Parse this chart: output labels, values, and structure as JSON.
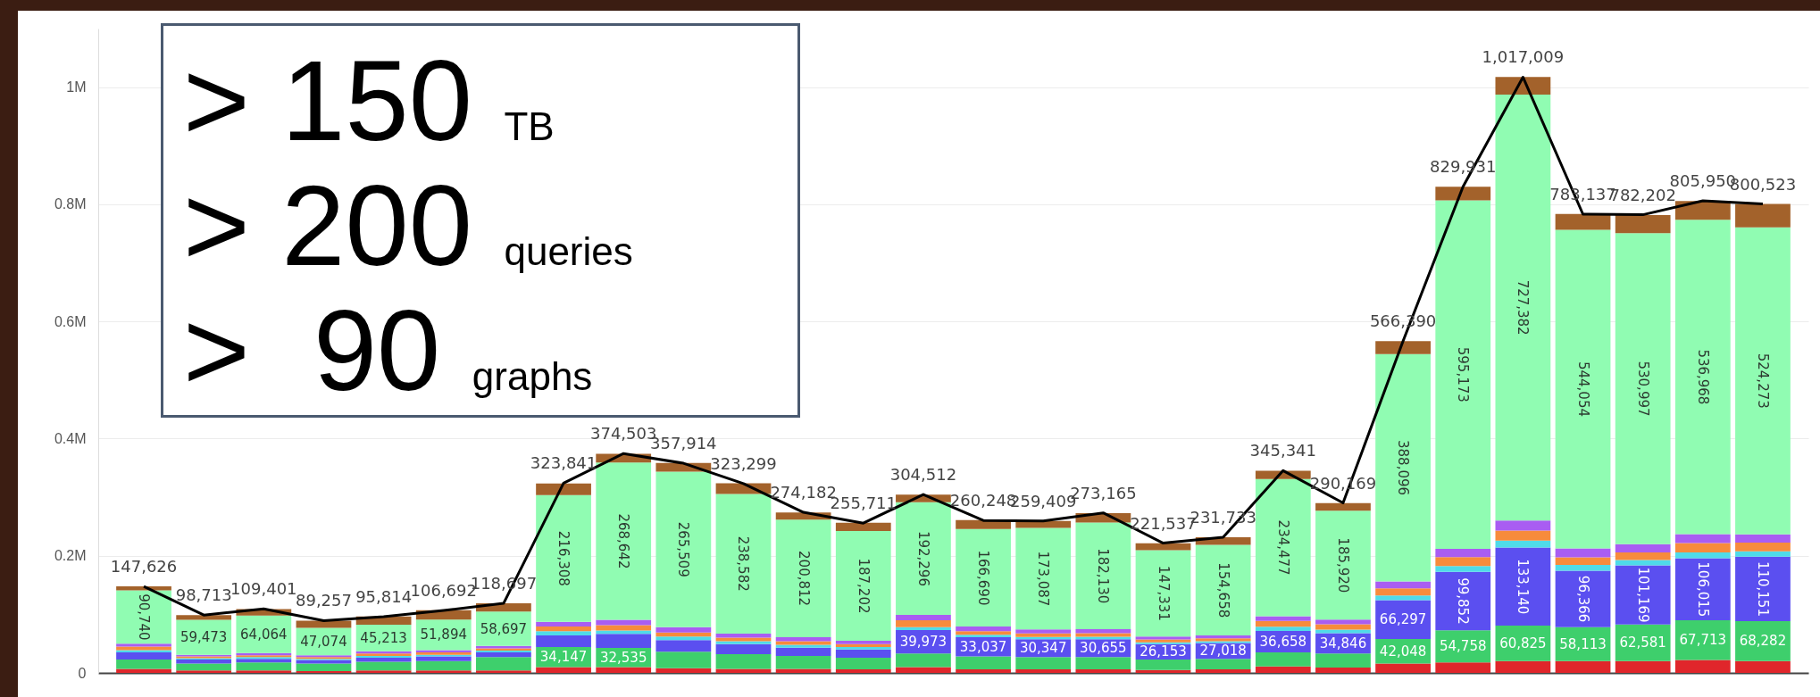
{
  "chart_data": {
    "type": "bar",
    "stacked": true,
    "categories": [
      null,
      null,
      null,
      null,
      null,
      null,
      null,
      null,
      null,
      null,
      null,
      null,
      null,
      null,
      null,
      null,
      null,
      null,
      null,
      null,
      null,
      null,
      null,
      null,
      null,
      null,
      null,
      null
    ],
    "ylim": [
      0,
      1100000
    ],
    "yticks": [
      0,
      {
        "value": 200000,
        "label": "0.2M"
      },
      {
        "value": 400000,
        "label": "0.4M"
      },
      {
        "value": 600000,
        "label": "0.6M"
      },
      {
        "value": 800000,
        "label": "0.8M"
      },
      {
        "value": 1000000,
        "label": "1M"
      }
    ],
    "grid": "y",
    "tick_labels": "y",
    "annotations": [
      "> 150 TB",
      "> 200 queries",
      ">  90 graphs"
    ],
    "series": [
      {
        "color": "#e0262b",
        "values": [
          7000,
          4000,
          4000,
          3000,
          4000,
          4000,
          4000,
          10000,
          10000,
          8000,
          7000,
          7000,
          6000,
          10000,
          6000,
          6000,
          6000,
          5000,
          6000,
          11000,
          9000,
          16000,
          18000,
          20000,
          20000,
          20000,
          22000,
          20000
        ]
      },
      {
        "color": "#3ecf6c",
        "values": [
          16000,
          12000,
          14000,
          13000,
          15000,
          16000,
          23000,
          34147,
          32535,
          28000,
          25000,
          22000,
          20000,
          23000,
          22000,
          21000,
          21000,
          18000,
          18000,
          24000,
          24000,
          42048,
          54758,
          60825,
          58113,
          62581,
          67713,
          68282
        ],
        "value_labels": [
          null,
          null,
          null,
          null,
          null,
          null,
          null,
          "34,147",
          "32,535",
          null,
          null,
          null,
          null,
          null,
          null,
          null,
          null,
          null,
          null,
          null,
          null,
          "42,048",
          "54,758",
          "60,825",
          "58,113",
          "62,581",
          "67,713",
          "68,282"
        ]
      },
      {
        "color": "#5b4ff0",
        "values": [
          12000,
          7000,
          6000,
          6000,
          7000,
          8000,
          8000,
          20000,
          24000,
          20000,
          17000,
          14000,
          14000,
          39973,
          33037,
          30347,
          30655,
          26153,
          27018,
          36658,
          34846,
          66297,
          99852,
          133140,
          96366,
          101169,
          106015,
          110151
        ],
        "value_labels": [
          null,
          null,
          null,
          null,
          null,
          null,
          null,
          null,
          null,
          null,
          null,
          null,
          null,
          "39,973",
          "33,037",
          "30,347",
          "30,655",
          "26,153",
          "27,018",
          "36,658",
          "34,846",
          "66,297",
          "99,852",
          "133,140",
          "96,366",
          "101,169",
          "106,015",
          "110,151"
        ]
      },
      {
        "color": "#4fdbe9",
        "values": [
          4000,
          2000,
          3000,
          2000,
          3000,
          3000,
          3000,
          7000,
          6000,
          6000,
          5000,
          5000,
          4000,
          5000,
          4000,
          4000,
          4000,
          3000,
          3000,
          7000,
          6000,
          8000,
          10000,
          12000,
          10000,
          9000,
          10000,
          9000
        ]
      },
      {
        "color": "#f78b3c",
        "values": [
          6000,
          3000,
          3000,
          3000,
          4000,
          4000,
          4000,
          8000,
          9000,
          7000,
          6000,
          6000,
          5000,
          12000,
          6000,
          6000,
          6000,
          5000,
          5000,
          10000,
          9000,
          12000,
          15000,
          17000,
          13000,
          13000,
          16000,
          15000
        ]
      },
      {
        "color": "#a95df2",
        "values": [
          5000,
          3000,
          4000,
          3000,
          4000,
          4000,
          4000,
          8000,
          9000,
          9000,
          7000,
          7000,
          6000,
          9000,
          8000,
          7000,
          7000,
          5000,
          5000,
          8000,
          8000,
          12000,
          14000,
          17000,
          15000,
          14000,
          15000,
          14000
        ]
      },
      {
        "color": "#90fcb2",
        "values": [
          90740,
          59473,
          64064,
          47074,
          45213,
          51894,
          58697,
          216308,
          268642,
          265509,
          238582,
          200812,
          187202,
          192296,
          166690,
          173087,
          182130,
          147331,
          154658,
          234477,
          185920,
          388096,
          595173,
          727382,
          544054,
          530997,
          536968,
          524273
        ],
        "value_labels": [
          "90,740",
          "59,473",
          "64,064",
          "47,074",
          "45,213",
          "51,894",
          "58,697",
          "216,308",
          "268,642",
          "265,509",
          "238,582",
          "200,812",
          "187,202",
          "192,296",
          "166,690",
          "173,087",
          "182,130",
          "147,331",
          "154,658",
          "234,477",
          "185,920",
          "388,096",
          "595,173",
          "727,382",
          "544,054",
          "530,997",
          "536,968",
          "524,273"
        ]
      },
      {
        "color": "#a3622b",
        "values": [
          7000,
          8000,
          11000,
          12000,
          14000,
          16000,
          14000,
          20000,
          15000,
          15000,
          18000,
          12000,
          14000,
          13000,
          15000,
          12000,
          16000,
          12000,
          13000,
          14000,
          13000,
          22000,
          23000,
          30000,
          27000,
          31000,
          32000,
          40000
        ]
      },
      {
        "type": "line",
        "color": "#000000",
        "values": [
          147626,
          98713,
          109401,
          89257,
          95814,
          106692,
          118697,
          323841,
          374503,
          357914,
          323299,
          274182,
          255711,
          304512,
          260248,
          259409,
          273165,
          221537,
          231733,
          345341,
          290169,
          566390,
          829931,
          1017009,
          783137,
          782202,
          805950,
          800523
        ],
        "value_labels": [
          "147,626",
          "98,713",
          "109,401",
          "89,257",
          "95,814",
          "106,692",
          "118,697",
          "323,841",
          "374,503",
          "357,914",
          "323,299",
          "274,182",
          "255,711",
          "304,512",
          "260,248",
          "259,409",
          "273,165",
          "221,537",
          "231,733",
          "345,341",
          "290,169",
          "566,390",
          "829,931",
          "1,017,009",
          "783,137",
          "782,202",
          "805,950",
          "800,523"
        ]
      }
    ]
  }
}
